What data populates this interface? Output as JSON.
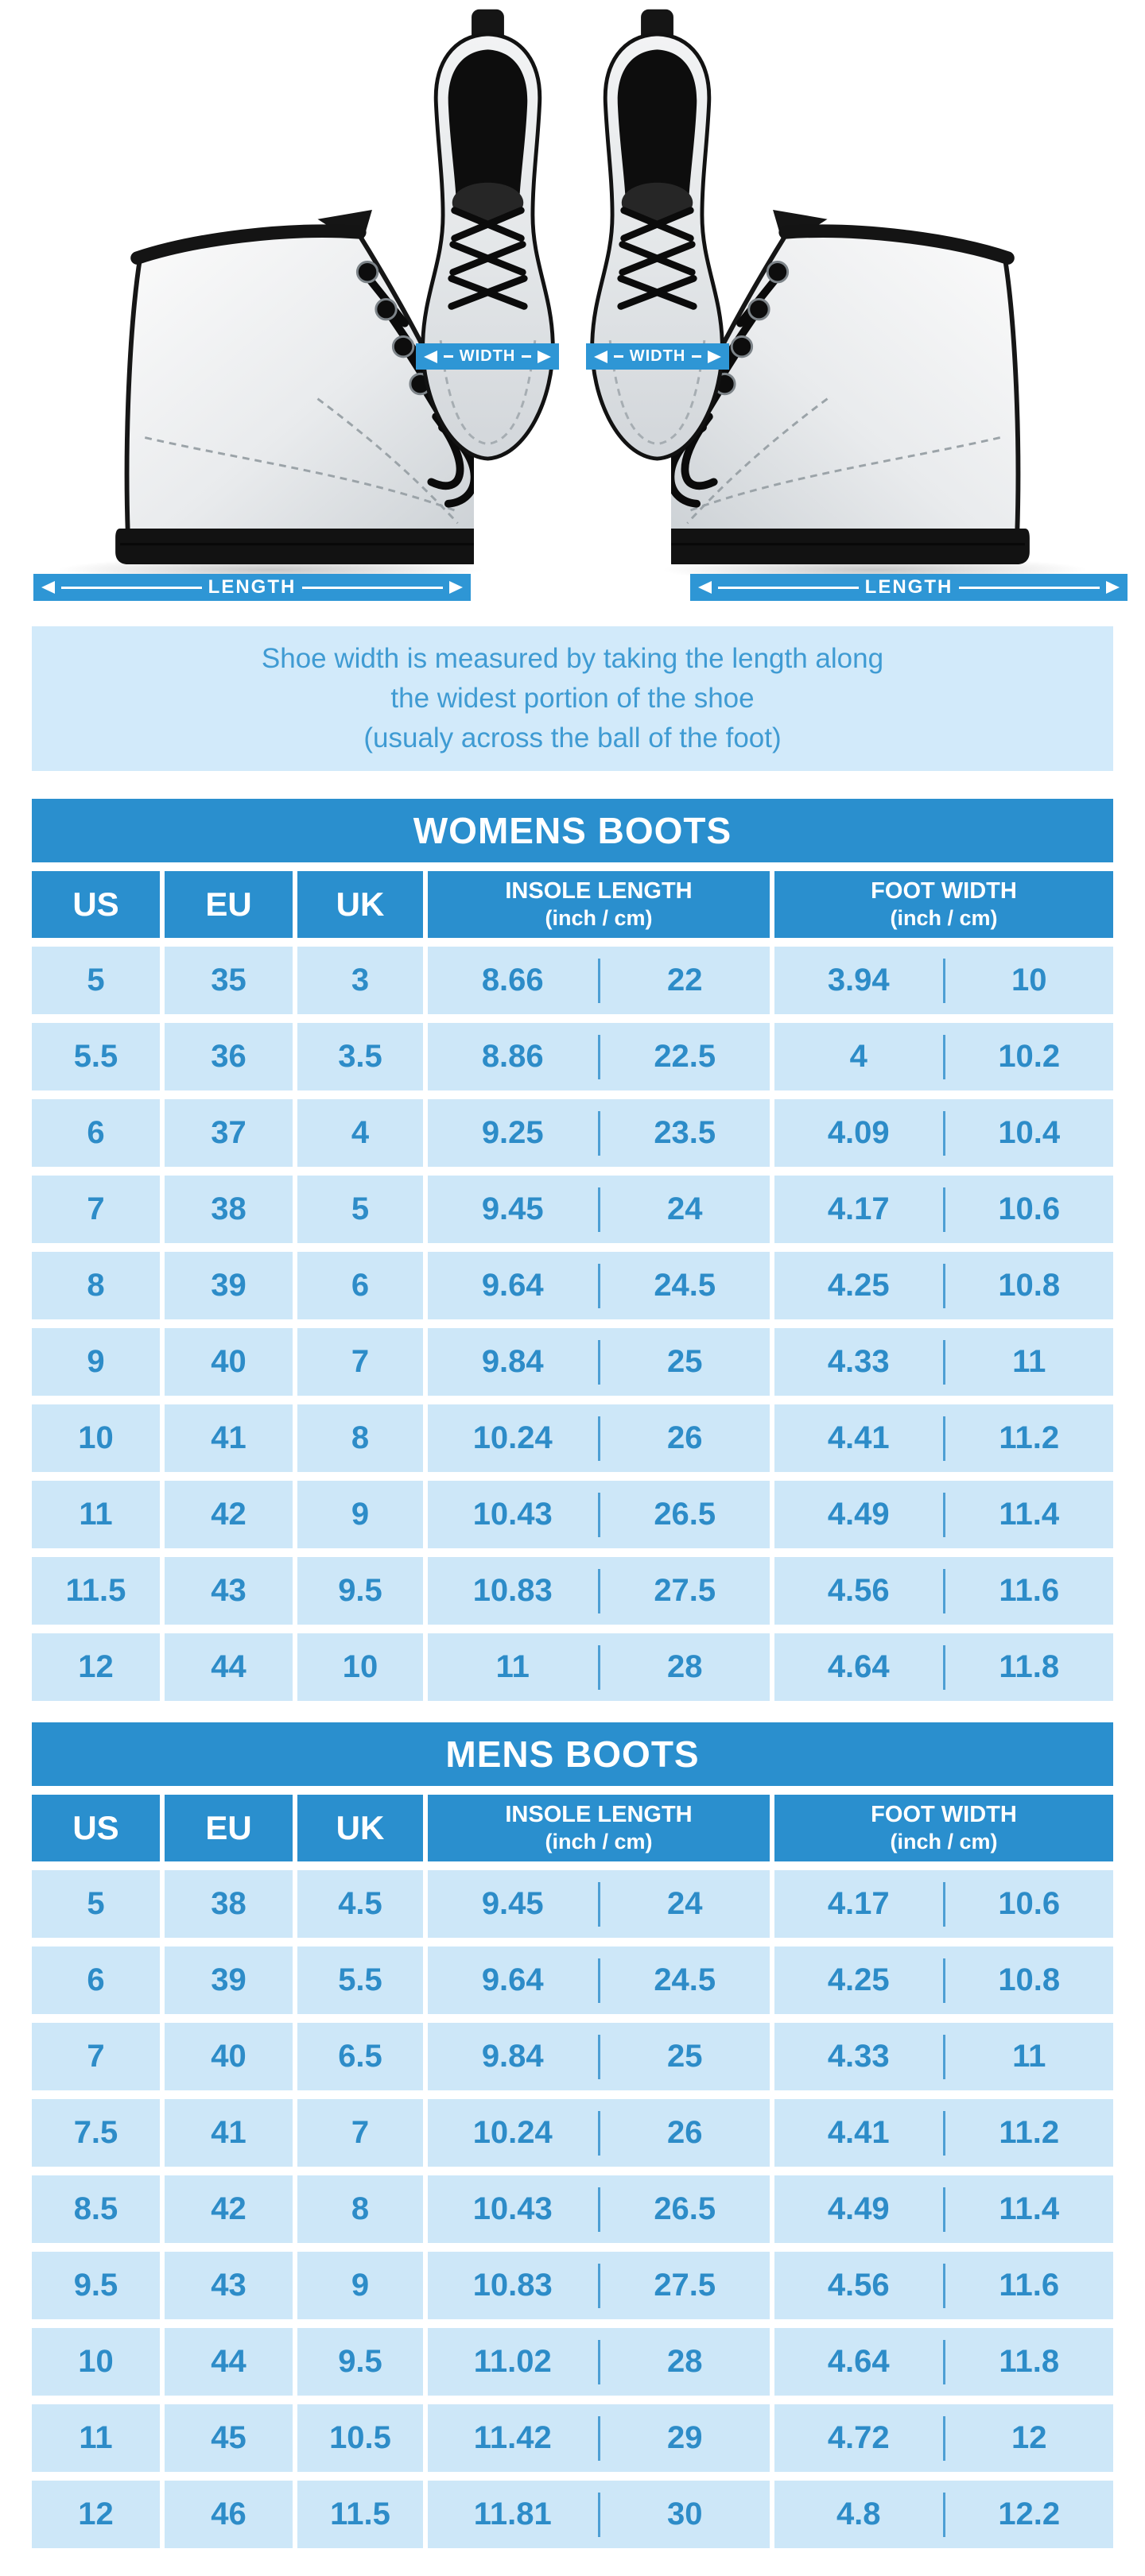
{
  "hero": {
    "width_label": "WIDTH",
    "length_label": "LENGTH",
    "images": [
      "boot-side-left",
      "boot-top-pair",
      "boot-side-right"
    ]
  },
  "note": {
    "lines": [
      "Shoe width is measured by taking the length along",
      "the widest portion of the shoe",
      "(usualy across the ball of the foot)"
    ]
  },
  "chart_data": [
    {
      "type": "table",
      "title": "WOMENS BOOTS",
      "columns": [
        "US",
        "EU",
        "UK",
        "INSOLE LENGTH",
        "FOOT WIDTH"
      ],
      "unit_note": "(inch / cm)",
      "rows": [
        [
          "5",
          "35",
          "3",
          "8.66",
          "22",
          "3.94",
          "10"
        ],
        [
          "5.5",
          "36",
          "3.5",
          "8.86",
          "22.5",
          "4",
          "10.2"
        ],
        [
          "6",
          "37",
          "4",
          "9.25",
          "23.5",
          "4.09",
          "10.4"
        ],
        [
          "7",
          "38",
          "5",
          "9.45",
          "24",
          "4.17",
          "10.6"
        ],
        [
          "8",
          "39",
          "6",
          "9.64",
          "24.5",
          "4.25",
          "10.8"
        ],
        [
          "9",
          "40",
          "7",
          "9.84",
          "25",
          "4.33",
          "11"
        ],
        [
          "10",
          "41",
          "8",
          "10.24",
          "26",
          "4.41",
          "11.2"
        ],
        [
          "11",
          "42",
          "9",
          "10.43",
          "26.5",
          "4.49",
          "11.4"
        ],
        [
          "11.5",
          "43",
          "9.5",
          "10.83",
          "27.5",
          "4.56",
          "11.6"
        ],
        [
          "12",
          "44",
          "10",
          "11",
          "28",
          "4.64",
          "11.8"
        ]
      ]
    },
    {
      "type": "table",
      "title": "MENS BOOTS",
      "columns": [
        "US",
        "EU",
        "UK",
        "INSOLE LENGTH",
        "FOOT WIDTH"
      ],
      "unit_note": "(inch / cm)",
      "rows": [
        [
          "5",
          "38",
          "4.5",
          "9.45",
          "24",
          "4.17",
          "10.6"
        ],
        [
          "6",
          "39",
          "5.5",
          "9.64",
          "24.5",
          "4.25",
          "10.8"
        ],
        [
          "7",
          "40",
          "6.5",
          "9.84",
          "25",
          "4.33",
          "11"
        ],
        [
          "7.5",
          "41",
          "7",
          "10.24",
          "26",
          "4.41",
          "11.2"
        ],
        [
          "8.5",
          "42",
          "8",
          "10.43",
          "26.5",
          "4.49",
          "11.4"
        ],
        [
          "9.5",
          "43",
          "9",
          "10.83",
          "27.5",
          "4.56",
          "11.6"
        ],
        [
          "10",
          "44",
          "9.5",
          "11.02",
          "28",
          "4.64",
          "11.8"
        ],
        [
          "11",
          "45",
          "10.5",
          "11.42",
          "29",
          "4.72",
          "12"
        ],
        [
          "12",
          "46",
          "11.5",
          "11.81",
          "30",
          "4.8",
          "12.2"
        ]
      ]
    }
  ],
  "colors": {
    "band_blue": "#2e96d5",
    "header_blue": "#2a8fce",
    "cell_blue": "#cde7f8",
    "text_blue": "#2d8cc8",
    "note_bg": "#d2eafa",
    "note_text": "#3f9bd3"
  }
}
